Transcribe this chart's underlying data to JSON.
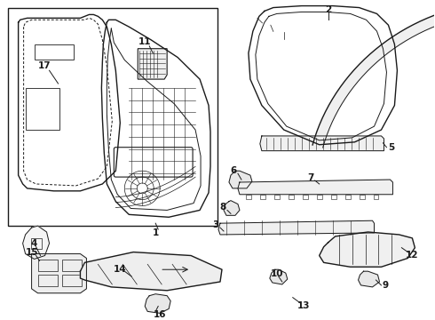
{
  "background_color": "#ffffff",
  "line_color": "#1a1a1a",
  "fig_width": 4.9,
  "fig_height": 3.6,
  "dpi": 100,
  "label_fontsize": 7.5
}
